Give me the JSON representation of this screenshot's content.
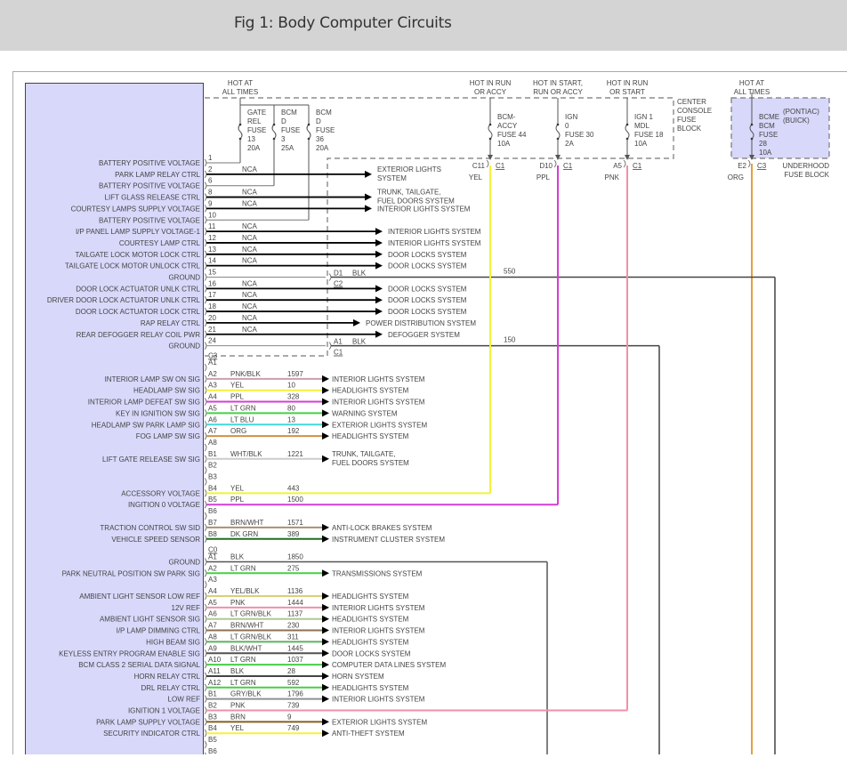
{
  "title": "Fig 1: Body Computer Circuits",
  "power_sources": [
    {
      "hot": [
        "HOT AT",
        "ALL TIMES"
      ]
    },
    {
      "hot": [
        "HOT IN RUN",
        "OR ACCY"
      ]
    },
    {
      "hot": [
        "HOT IN START,",
        "RUN OR ACCY"
      ]
    },
    {
      "hot": [
        "HOT IN RUN",
        "OR START"
      ]
    },
    {
      "hot": [
        "HOT AT",
        "ALL TIMES"
      ]
    }
  ],
  "fuses": [
    {
      "lines": [
        "GATE",
        "REL",
        "FUSE",
        "13",
        "20A"
      ]
    },
    {
      "lines": [
        "BCM",
        "D",
        "FUSE",
        "3",
        "25A"
      ]
    },
    {
      "lines": [
        "BCM",
        "D",
        "FUSE",
        "36",
        "20A"
      ]
    },
    {
      "lines": [
        "BCM-",
        "ACCY",
        "FUSE 44",
        "10A"
      ],
      "terminal": "C11",
      "connector": "C1",
      "wire": "YEL",
      "color": "#f2f23a"
    },
    {
      "lines": [
        "IGN",
        "0",
        "FUSE 30",
        "2A"
      ],
      "terminal": "D10",
      "connector": "C1",
      "wire": "PPL",
      "color": "#d63cd6"
    },
    {
      "lines": [
        "IGN 1",
        "MDL",
        "FUSE 18",
        "10A"
      ],
      "terminal": "A5",
      "connector": "C1",
      "wire": "PNK",
      "color": "#f090a8"
    },
    {
      "lines": [
        "BCME",
        "BCM",
        "FUSE",
        "28",
        "10A"
      ],
      "variants": [
        "(PONTIAC)",
        "(BUICK)"
      ],
      "terminal": "E2",
      "connector": "C3",
      "wire": "ORG",
      "color": "#e0a040"
    }
  ],
  "fuse_blocks": {
    "center": [
      "CENTER",
      "CONSOLE",
      "FUSE",
      "BLOCK"
    ],
    "underhood": [
      "UNDERHOOD",
      "FUSE BLOCK"
    ]
  },
  "section1": {
    "connector": "C3",
    "rows": [
      {
        "pin": "1",
        "label": "BATTERY POSITIVE VOLTAGE"
      },
      {
        "pin": "2",
        "label": "PARK LAMP RELAY CTRL",
        "wire": "NCA",
        "dest": "EXTERIOR LIGHTS",
        "dest2": "SYSTEM"
      },
      {
        "pin": "6",
        "label": "BATTERY POSITIVE VOLTAGE"
      },
      {
        "pin": "8",
        "label": "LIFT GLASS RELEASE CTRL",
        "wire": "NCA",
        "dest": "TRUNK, TAILGATE,",
        "dest2": "FUEL DOORS SYSTEM"
      },
      {
        "pin": "9",
        "label": "COURTESY LAMPS SUPPLY VOLTAGE",
        "wire": "NCA",
        "dest": "INTERIOR LIGHTS SYSTEM"
      },
      {
        "pin": "10",
        "label": "BATTERY POSITIVE VOLTAGE"
      },
      {
        "pin": "11",
        "label": "I/P PANEL LAMP SUPPLY VOLTAGE-1",
        "wire": "NCA",
        "dest": "INTERIOR LIGHTS SYSTEM"
      },
      {
        "pin": "12",
        "label": "COURTESY LAMP CTRL",
        "wire": "NCA",
        "dest": "INTERIOR LIGHTS SYSTEM"
      },
      {
        "pin": "13",
        "label": "TAILGATE LOCK MOTOR LOCK CTRL",
        "wire": "NCA",
        "dest": "DOOR LOCKS SYSTEM"
      },
      {
        "pin": "14",
        "label": "TAILGATE LOCK MOTOR UNLOCK CTRL",
        "wire": "NCA",
        "dest": "DOOR LOCKS SYSTEM"
      },
      {
        "pin": "15",
        "label": "GROUND",
        "ground": {
          "terminal": "D1",
          "connector": "C2",
          "wire": "BLK",
          "circuit": "550"
        }
      },
      {
        "pin": "16",
        "label": "DOOR LOCK ACTUATOR UNLK CTRL",
        "wire": "NCA",
        "dest": "DOOR LOCKS SYSTEM"
      },
      {
        "pin": "17",
        "label": "DRIVER DOOR LOCK ACTUATOR UNLK CTRL",
        "wire": "NCA",
        "dest": "DOOR LOCKS SYSTEM"
      },
      {
        "pin": "18",
        "label": "DOOR LOCK ACTUATOR LOCK CTRL",
        "wire": "NCA",
        "dest": "DOOR LOCKS SYSTEM"
      },
      {
        "pin": "20",
        "label": "RAP RELAY CTRL",
        "wire": "NCA",
        "dest": "POWER DISTRIBUTION SYSTEM"
      },
      {
        "pin": "21",
        "label": "REAR DEFOGGER RELAY COIL PWR",
        "wire": "NCA",
        "dest": "DEFOGGER SYSTEM"
      },
      {
        "pin": "24",
        "label": "GROUND",
        "ground": {
          "terminal": "A1",
          "connector": "C1",
          "wire": "BLK",
          "circuit": "150"
        }
      }
    ]
  },
  "section2": {
    "rows": [
      {
        "pin": "A1"
      },
      {
        "pin": "A2",
        "label": "INTERIOR LAMP SW ON SIG",
        "wire": "PNK/BLK",
        "circuit": "1597",
        "dest": "INTERIOR LIGHTS SYSTEM",
        "color": "#c8a0ac"
      },
      {
        "pin": "A3",
        "label": "HEADLAMP SW SIG",
        "wire": "YEL",
        "circuit": "10",
        "dest": "HEADLIGHTS SYSTEM",
        "color": "#f2f23a"
      },
      {
        "pin": "A4",
        "label": "INTERIOR LAMP DEFEAT SW SIG",
        "wire": "PPL",
        "circuit": "328",
        "dest": "INTERIOR LIGHTS SYSTEM",
        "color": "#d63cd6"
      },
      {
        "pin": "A5",
        "label": "KEY IN IGNITION SW SIG",
        "wire": "LT GRN",
        "circuit": "80",
        "dest": "WARNING SYSTEM",
        "color": "#44d044"
      },
      {
        "pin": "A6",
        "label": "HEADLAMP SW PARK LAMP SIG",
        "wire": "LT BLU",
        "circuit": "13",
        "dest": "EXTERIOR LIGHTS SYSTEM",
        "color": "#40d8d8"
      },
      {
        "pin": "A7",
        "label": "FOG LAMP SW SIG",
        "wire": "ORG",
        "circuit": "192",
        "dest": "HEADLIGHTS SYSTEM",
        "color": "#d09040"
      },
      {
        "pin": "A8"
      },
      {
        "pin": "B1",
        "label": "LIFT GATE RELEASE SW SIG",
        "wire": "WHT/BLK",
        "circuit": "1221",
        "dest": "TRUNK, TAILGATE,",
        "dest2": "FUEL DOORS SYSTEM",
        "color": "#cccccc"
      },
      {
        "pin": "B2"
      },
      {
        "pin": "B3"
      },
      {
        "pin": "B4",
        "label": "ACCESSORY VOLTAGE",
        "wire": "YEL",
        "circuit": "443",
        "feed": 3,
        "color": "#f2f23a"
      },
      {
        "pin": "B5",
        "label": "INGITION 0 VOLTAGE",
        "wire": "PPL",
        "circuit": "1500",
        "feed": 4,
        "color": "#d63cd6"
      },
      {
        "pin": "B6"
      },
      {
        "pin": "B7",
        "label": "TRACTION CONTROL SW SID",
        "wire": "BRN/WHT",
        "circuit": "1571",
        "dest": "ANTI-LOCK BRAKES SYSTEM",
        "color": "#a89070"
      },
      {
        "pin": "B8",
        "label": "VEHICLE SPEED SENSOR",
        "wire": "DK GRN",
        "circuit": "389",
        "dest": "INSTRUMENT CLUSTER SYSTEM",
        "color": "#1f6f1f"
      },
      {
        "connector": "C0"
      },
      {
        "pin": "A1",
        "label": "GROUND",
        "wire": "BLK",
        "circuit": "1850",
        "ground": true,
        "color": "#555555"
      },
      {
        "pin": "A2",
        "label": "PARK NEUTRAL POSITION SW PARK SIG",
        "wire": "LT GRN",
        "circuit": "275",
        "dest": "TRANSMISSIONS SYSTEM",
        "color": "#44d044"
      },
      {
        "pin": "A3"
      },
      {
        "pin": "A4",
        "label": "AMBIENT LIGHT SENSOR LOW REF",
        "wire": "YEL/BLK",
        "circuit": "1136",
        "dest": "HEADLIGHTS SYSTEM",
        "color": "#d8d078"
      },
      {
        "pin": "A5",
        "label": "12V REF",
        "wire": "PNK",
        "circuit": "1444",
        "dest": "INTERIOR LIGHTS SYSTEM",
        "color": "#f090a8"
      },
      {
        "pin": "A6",
        "label": "AMBIENT LIGHT SENSOR SIG",
        "wire": "LT GRN/BLK",
        "circuit": "1137",
        "dest": "HEADLIGHTS SYSTEM",
        "color": "#b0c890"
      },
      {
        "pin": "A7",
        "label": "I/P LAMP DIMMING CTRL",
        "wire": "BRN/WHT",
        "circuit": "230",
        "dest": "INTERIOR LIGHTS SYSTEM",
        "color": "#8a7050"
      },
      {
        "pin": "A8",
        "label": "HIGH BEAM SIG",
        "wire": "LT GRN/BLK",
        "circuit": "311",
        "dest": "HEADLIGHTS SYSTEM",
        "color": "#60b060"
      },
      {
        "pin": "A9",
        "label": "KEYLESS ENTRY PROGRAM ENABLE SIG",
        "wire": "BLK/WHT",
        "circuit": "1445",
        "dest": "DOOR LOCKS SYSTEM",
        "color": "#505050"
      },
      {
        "pin": "A10",
        "label": "BCM CLASS 2 SERIAL DATA SIGNAL",
        "wire": "LT GRN",
        "circuit": "1037",
        "dest": "COMPUTER DATA LINES SYSTEM",
        "color": "#44d044"
      },
      {
        "pin": "A11",
        "label": "HORN RELAY CTRL",
        "wire": "BLK",
        "circuit": "28",
        "dest": "HORN SYSTEM",
        "color": "#444444"
      },
      {
        "pin": "A12",
        "label": "DRL RELAY CTRL",
        "wire": "LT GRN",
        "circuit": "592",
        "dest": "HEADLIGHTS SYSTEM",
        "color": "#44d044"
      },
      {
        "pin": "B1",
        "label": "LOW REF",
        "wire": "GRY/BLK",
        "circuit": "1796",
        "dest": "INTERIOR LIGHTS SYSTEM",
        "color": "#909090"
      },
      {
        "pin": "B2",
        "label": "IGNITION 1 VOLTAGE",
        "wire": "PNK",
        "circuit": "739",
        "feed": 5,
        "color": "#f090a8"
      },
      {
        "pin": "B3",
        "label": "PARK LAMP SUPPLY VOLTAGE",
        "wire": "BRN",
        "circuit": "9",
        "dest": "EXTERIOR LIGHTS SYSTEM",
        "color": "#806020"
      },
      {
        "pin": "B4",
        "label": "SECURITY INDICATOR CTRL",
        "wire": "YEL",
        "circuit": "749",
        "dest": "ANTI-THEFT SYSTEM",
        "color": "#f2f23a"
      },
      {
        "pin": "B5"
      },
      {
        "pin": "B6"
      }
    ]
  },
  "colors": {
    "header_bg": "#d4d4d4",
    "module_fill": "#d8d8fa",
    "line": "#555555"
  }
}
